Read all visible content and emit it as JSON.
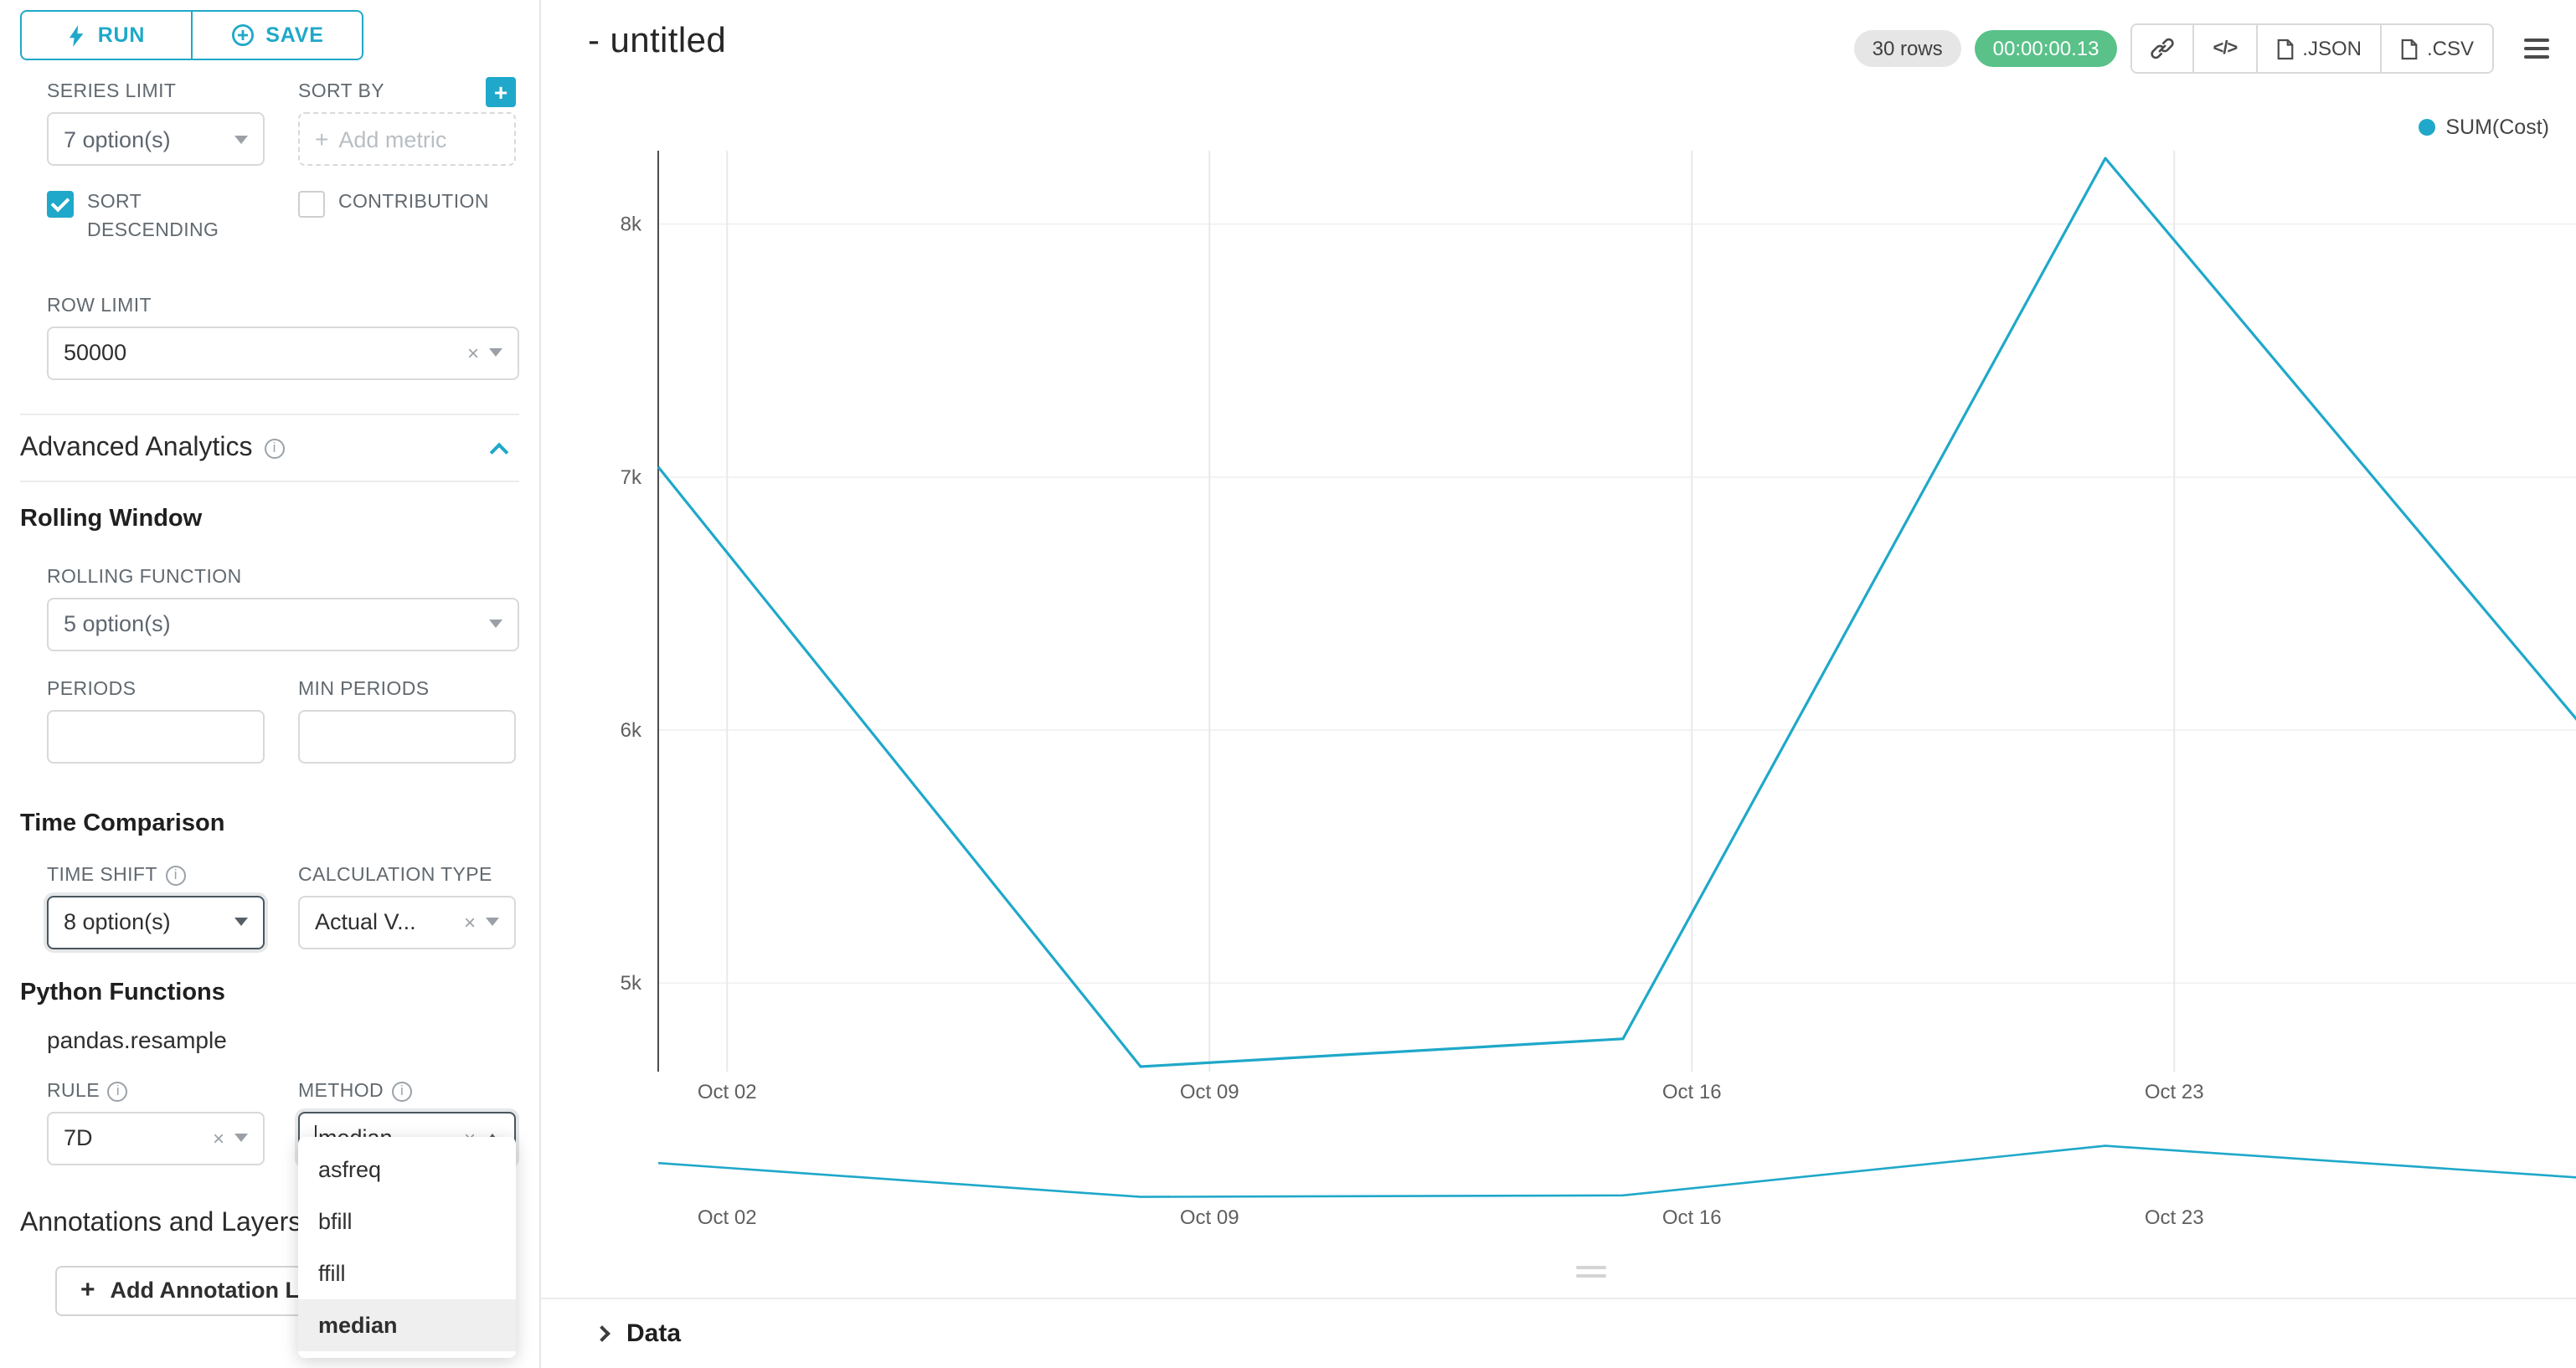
{
  "accent": "#1FA8C9",
  "toolbar": {
    "run": "RUN",
    "save": "SAVE"
  },
  "sidebar": {
    "series_limit_label": "SERIES LIMIT",
    "series_limit_value": "7 option(s)",
    "sort_by_label": "SORT BY",
    "sort_by_placeholder": "Add metric",
    "sort_descending_label": "SORT DESCENDING",
    "contribution_label": "CONTRIBUTION",
    "row_limit_label": "ROW LIMIT",
    "row_limit_value": "50000",
    "advanced_analytics_title": "Advanced Analytics",
    "rolling_window_title": "Rolling Window",
    "rolling_function_label": "ROLLING FUNCTION",
    "rolling_function_value": "5 option(s)",
    "periods_label": "PERIODS",
    "min_periods_label": "MIN PERIODS",
    "time_comparison_title": "Time Comparison",
    "time_shift_label": "TIME SHIFT",
    "time_shift_value": "8 option(s)",
    "calculation_type_label": "CALCULATION TYPE",
    "calculation_type_value": "Actual V...",
    "python_functions_title": "Python Functions",
    "python_functions_subtitle": "pandas.resample",
    "rule_label": "RULE",
    "rule_value": "7D",
    "method_label": "METHOD",
    "method_value": "median",
    "method_options": [
      "asfreq",
      "bfill",
      "ffill",
      "median"
    ],
    "method_selected": "median",
    "annotations_title": "Annotations and Layers",
    "add_annotation_label": "Add Annotation Layer"
  },
  "header": {
    "title": "- untitled",
    "rows_badge": "30 rows",
    "timer_badge": "00:00:00.13",
    "json_button": ".JSON",
    "csv_button": ".CSV"
  },
  "data_panel": {
    "title": "Data"
  },
  "chart_data": {
    "type": "line",
    "title": "- untitled",
    "legend": [
      "SUM(Cost)"
    ],
    "legend_position": "top-right",
    "x": [
      "Oct 01",
      "Oct 08",
      "Oct 15",
      "Oct 22",
      "Oct 29"
    ],
    "series": [
      {
        "name": "SUM(Cost)",
        "values": [
          7040,
          4670,
          4780,
          8260,
          5990
        ]
      }
    ],
    "x_ticks": [
      {
        "label": "Oct 02",
        "f": 0.0357
      },
      {
        "label": "Oct 09",
        "f": 0.2857
      },
      {
        "label": "Oct 16",
        "f": 0.5357
      },
      {
        "label": "Oct 23",
        "f": 0.7857
      }
    ],
    "y_ticks": [
      {
        "label": "5k",
        "v": 5000
      },
      {
        "label": "6k",
        "v": 6000
      },
      {
        "label": "7k",
        "v": 7000
      },
      {
        "label": "8k",
        "v": 8000
      }
    ],
    "ylim": [
      4650,
      8290
    ],
    "line_color": "#1FA8C9",
    "grid": true,
    "has_mini_preview": true
  }
}
